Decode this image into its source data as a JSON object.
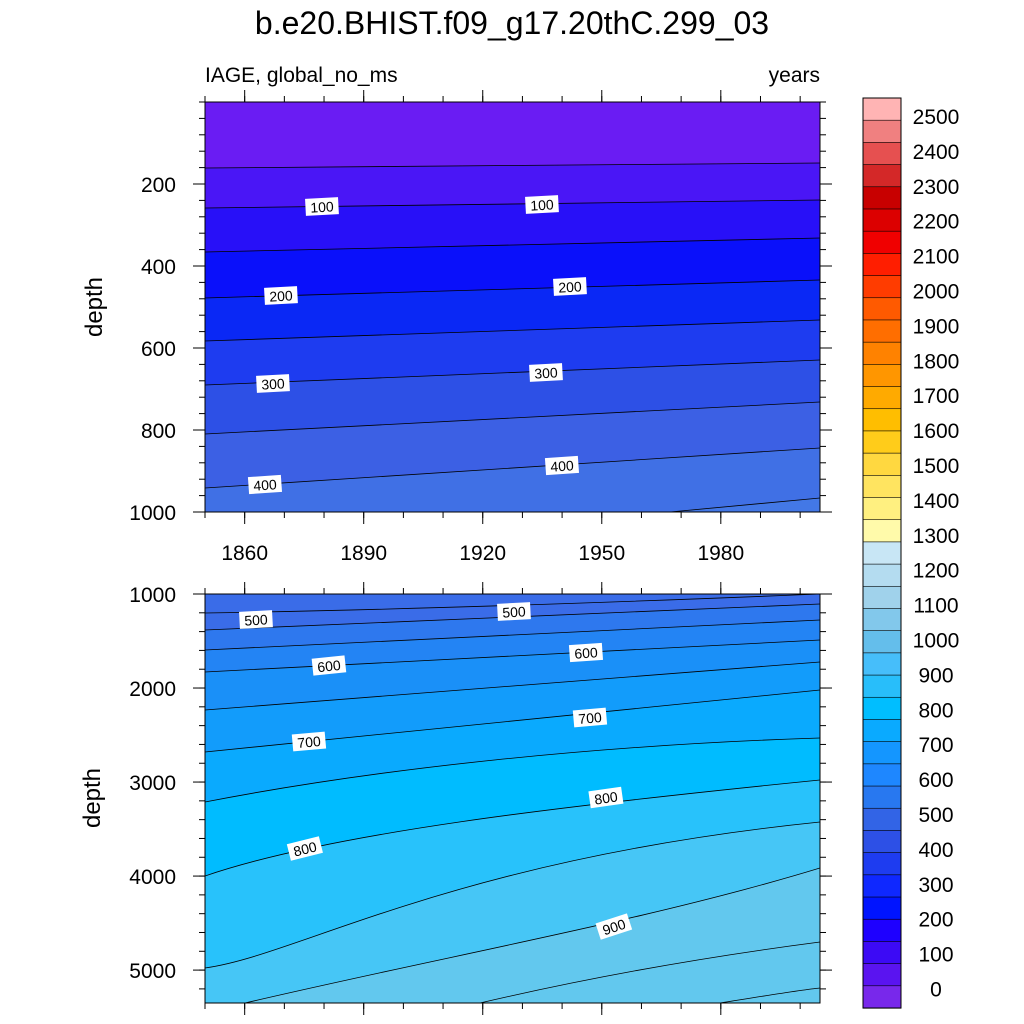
{
  "chart_data": {
    "type": "contour",
    "title": "b.e20.BHIST.f09_g17.20thC.299_03",
    "variable_label": "IAGE, global_no_ms",
    "units_label": "years",
    "xlabel": "",
    "ylabel": "depth",
    "x_range": [
      1850,
      2005
    ],
    "x_ticks": [
      1860,
      1890,
      1920,
      1950,
      1980
    ],
    "panels": [
      {
        "name": "upper",
        "ylim": [
          0,
          1000
        ],
        "y_ticks": [
          200,
          400,
          600,
          800,
          1000
        ],
        "y_ticks_visible_labels": [
          "200",
          "400",
          "600",
          "800",
          "1000"
        ],
        "contour_labels": [
          "100",
          "100",
          "200",
          "200",
          "300",
          "300",
          "400",
          "400"
        ]
      },
      {
        "name": "lower",
        "ylim": [
          1000,
          5350
        ],
        "y_ticks": [
          1000,
          2000,
          3000,
          4000,
          5000
        ],
        "y_ticks_visible_labels": [
          "1000",
          "2000",
          "3000",
          "4000",
          "5000"
        ],
        "contour_labels": [
          "500",
          "500",
          "600",
          "600",
          "700",
          "700",
          "800",
          "800",
          "900"
        ]
      }
    ],
    "colorbar": {
      "labels": [
        "2500",
        "2400",
        "2300",
        "2200",
        "2100",
        "2000",
        "1900",
        "1800",
        "1700",
        "1600",
        "1500",
        "1400",
        "1300",
        "1200",
        "1100",
        "1000",
        "900",
        "800",
        "700",
        "600",
        "500",
        "400",
        "300",
        "200",
        "100",
        "0"
      ],
      "colors_top_to_bottom": [
        "#FFB4B4",
        "#F08080",
        "#E65050",
        "#D42828",
        "#C80000",
        "#DC0000",
        "#F00000",
        "#FF1E00",
        "#FF3C00",
        "#FF5A00",
        "#FF6E00",
        "#FF8200",
        "#FF9600",
        "#FFAA00",
        "#FFBE00",
        "#FFCC1A",
        "#FFD840",
        "#FFE460",
        "#FFF080",
        "#FFFAAA",
        "#C8E6F5",
        "#B4DCF0",
        "#A0D2EB",
        "#82C8EB",
        "#64BEEB",
        "#46BEFA",
        "#28BEFA",
        "#00BEFF",
        "#0AAAFF",
        "#1496FF",
        "#1E87FF",
        "#2878F0",
        "#3264E6",
        "#2D50E6",
        "#1E3CF0",
        "#0F28FF",
        "#0014FF",
        "#1E00FF",
        "#3C0AF5",
        "#5A14F0",
        "#7828EB"
      ]
    },
    "upper_fill_colors": [
      "#6A1CF3",
      "#4A16F6",
      "#2810F8",
      "#0A10FA",
      "#0A28F5",
      "#1E3CF0",
      "#2D50E6",
      "#3C60E4",
      "#4070E5"
    ],
    "lower_fill_colors": [
      "#3A6CE8",
      "#2E78EE",
      "#2384F4",
      "#1A90F8",
      "#129CFB",
      "#0AAAFE",
      "#00BCFF",
      "#28C2FB",
      "#46C6F6",
      "#62C8EE"
    ]
  }
}
